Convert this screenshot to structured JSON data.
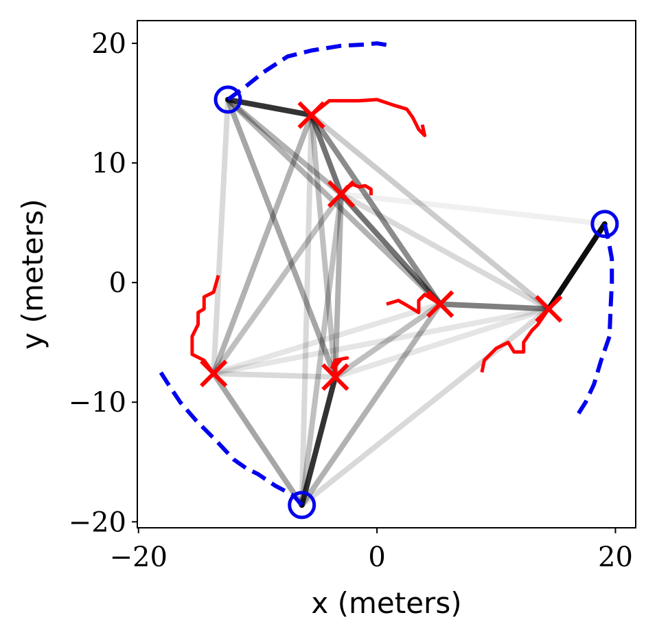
{
  "chart_data": {
    "type": "scatter",
    "title": "",
    "xlabel": "x (meters)",
    "ylabel": "y (meters)",
    "xlim": [
      -20.1,
      21.7
    ],
    "ylim": [
      -20.5,
      21.9
    ],
    "xticks": [
      -20,
      0,
      20
    ],
    "yticks": [
      -20,
      -10,
      0,
      10,
      20
    ],
    "xtick_labels": [
      "−20",
      "0",
      "20"
    ],
    "ytick_labels": [
      "−20",
      "−10",
      "0",
      "10",
      "20"
    ],
    "grid": false,
    "legend": "none",
    "colors": {
      "anchor": "#0000ee",
      "estimate": "#ff0000",
      "link": "#000000",
      "dashed": "#0000ee"
    },
    "anchors": [
      {
        "x": -12.5,
        "y": 15.3
      },
      {
        "x": 19.1,
        "y": 4.9
      },
      {
        "x": -6.3,
        "y": -18.6
      }
    ],
    "estimates": [
      {
        "x": -5.5,
        "y": 14.0
      },
      {
        "x": -3.0,
        "y": 7.4
      },
      {
        "x": 5.3,
        "y": -1.8
      },
      {
        "x": 14.4,
        "y": -2.2
      },
      {
        "x": -13.7,
        "y": -7.6
      },
      {
        "x": -3.5,
        "y": -7.9
      }
    ],
    "links": [
      {
        "from": [
          -12.5,
          15.3
        ],
        "to": [
          -5.5,
          14.0
        ],
        "opacity": 0.8
      },
      {
        "from": [
          -12.5,
          15.3
        ],
        "to": [
          -3.0,
          7.4
        ],
        "opacity": 0.3
      },
      {
        "from": [
          -12.5,
          15.3
        ],
        "to": [
          5.3,
          -1.8
        ],
        "opacity": 0.3
      },
      {
        "from": [
          -12.5,
          15.3
        ],
        "to": [
          -3.5,
          -7.9
        ],
        "opacity": 0.35
      },
      {
        "from": [
          -12.5,
          15.3
        ],
        "to": [
          -13.7,
          -7.6
        ],
        "opacity": 0.15
      },
      {
        "from": [
          -5.5,
          14.0
        ],
        "to": [
          -3.0,
          7.4
        ],
        "opacity": 0.55
      },
      {
        "from": [
          -5.5,
          14.0
        ],
        "to": [
          5.3,
          -1.8
        ],
        "opacity": 0.45
      },
      {
        "from": [
          -5.5,
          14.0
        ],
        "to": [
          14.4,
          -2.2
        ],
        "opacity": 0.2
      },
      {
        "from": [
          -5.5,
          14.0
        ],
        "to": [
          -13.7,
          -7.6
        ],
        "opacity": 0.3
      },
      {
        "from": [
          -5.5,
          14.0
        ],
        "to": [
          -3.5,
          -7.9
        ],
        "opacity": 0.25
      },
      {
        "from": [
          -5.5,
          14.0
        ],
        "to": [
          -6.3,
          -18.6
        ],
        "opacity": 0.15
      },
      {
        "from": [
          -3.0,
          7.4
        ],
        "to": [
          5.3,
          -1.8
        ],
        "opacity": 0.55
      },
      {
        "from": [
          -3.0,
          7.4
        ],
        "to": [
          14.4,
          -2.2
        ],
        "opacity": 0.15
      },
      {
        "from": [
          -3.0,
          7.4
        ],
        "to": [
          -13.7,
          -7.6
        ],
        "opacity": 0.25
      },
      {
        "from": [
          -3.0,
          7.4
        ],
        "to": [
          -3.5,
          -7.9
        ],
        "opacity": 0.3
      },
      {
        "from": [
          -3.0,
          7.4
        ],
        "to": [
          -6.3,
          -18.6
        ],
        "opacity": 0.25
      },
      {
        "from": [
          -3.0,
          7.4
        ],
        "to": [
          19.1,
          4.9
        ],
        "opacity": 0.06
      },
      {
        "from": [
          5.3,
          -1.8
        ],
        "to": [
          14.4,
          -2.2
        ],
        "opacity": 0.5
      },
      {
        "from": [
          5.3,
          -1.8
        ],
        "to": [
          -13.7,
          -7.6
        ],
        "opacity": 0.1
      },
      {
        "from": [
          5.3,
          -1.8
        ],
        "to": [
          -3.5,
          -7.9
        ],
        "opacity": 0.25
      },
      {
        "from": [
          5.3,
          -1.8
        ],
        "to": [
          -6.3,
          -18.6
        ],
        "opacity": 0.3
      },
      {
        "from": [
          14.4,
          -2.2
        ],
        "to": [
          19.1,
          4.9
        ],
        "opacity": 0.95
      },
      {
        "from": [
          14.4,
          -2.2
        ],
        "to": [
          -13.7,
          -7.6
        ],
        "opacity": 0.1
      },
      {
        "from": [
          14.4,
          -2.2
        ],
        "to": [
          -3.5,
          -7.9
        ],
        "opacity": 0.1
      },
      {
        "from": [
          14.4,
          -2.2
        ],
        "to": [
          -6.3,
          -18.6
        ],
        "opacity": 0.15
      },
      {
        "from": [
          -13.7,
          -7.6
        ],
        "to": [
          -3.5,
          -7.9
        ],
        "opacity": 0.15
      },
      {
        "from": [
          -13.7,
          -7.6
        ],
        "to": [
          -6.3,
          -18.6
        ],
        "opacity": 0.35
      },
      {
        "from": [
          -3.5,
          -7.9
        ],
        "to": [
          -6.3,
          -18.6
        ],
        "opacity": 0.8
      }
    ],
    "trajectories": [
      {
        "points": [
          [
            -5.5,
            14.0
          ],
          [
            -4.0,
            15.2
          ],
          [
            -1.5,
            15.2
          ],
          [
            0,
            15.3
          ],
          [
            1.5,
            14.8
          ],
          [
            2.5,
            14.5
          ],
          [
            3.0,
            13.8
          ],
          [
            3.5,
            12.8
          ],
          [
            4.0,
            12.3
          ],
          [
            3.8,
            13.2
          ]
        ]
      },
      {
        "points": [
          [
            -3.0,
            7.4
          ],
          [
            -2.5,
            8.0
          ],
          [
            -2.0,
            8.2
          ],
          [
            -1.5,
            8.0
          ],
          [
            -1.0,
            8.1
          ],
          [
            -0.5,
            7.8
          ],
          [
            -0.5,
            7.3
          ]
        ]
      },
      {
        "points": [
          [
            5.3,
            -1.8
          ],
          [
            4.0,
            -1.0
          ],
          [
            3.5,
            -1.5
          ],
          [
            3.5,
            -2.5
          ],
          [
            2.5,
            -1.9
          ],
          [
            1.8,
            -1.5
          ],
          [
            0.8,
            -1.8
          ]
        ]
      },
      {
        "points": [
          [
            14.4,
            -2.2
          ],
          [
            13.5,
            -3.5
          ],
          [
            13.0,
            -4.0
          ],
          [
            12.3,
            -5.0
          ],
          [
            12.3,
            -5.8
          ],
          [
            11.5,
            -5.8
          ],
          [
            11.0,
            -5.0
          ],
          [
            10.0,
            -5.5
          ],
          [
            9.0,
            -6.5
          ],
          [
            8.8,
            -7.5
          ]
        ]
      },
      {
        "points": [
          [
            -13.7,
            -7.6
          ],
          [
            -14.5,
            -6.5
          ],
          [
            -15.5,
            -6.0
          ],
          [
            -15.5,
            -4.5
          ],
          [
            -15.0,
            -3.5
          ],
          [
            -15.0,
            -2.5
          ],
          [
            -14.5,
            -2.2
          ],
          [
            -14.5,
            -1.2
          ],
          [
            -13.7,
            -0.8
          ],
          [
            -13.3,
            0.6
          ]
        ]
      },
      {
        "points": [
          [
            -3.5,
            -7.9
          ],
          [
            -3.5,
            -7.0
          ],
          [
            -3.0,
            -6.4
          ],
          [
            -2.5,
            -6.3
          ],
          [
            -3.5,
            -6.5
          ],
          [
            -3.8,
            -7.2
          ]
        ]
      }
    ],
    "dashed_paths": [
      {
        "points": [
          [
            -12.5,
            15.3
          ],
          [
            -11,
            16.4
          ],
          [
            -9.5,
            17.6
          ],
          [
            -7.5,
            18.9
          ],
          [
            -5.5,
            19.4
          ],
          [
            -3.0,
            19.8
          ],
          [
            -1.0,
            19.9
          ],
          [
            0,
            20.0
          ],
          [
            1.2,
            19.8
          ]
        ]
      },
      {
        "points": [
          [
            19.1,
            4.9
          ],
          [
            19.4,
            3.6
          ],
          [
            19.7,
            2.0
          ],
          [
            19.7,
            0
          ],
          [
            19.6,
            -2.0
          ],
          [
            19.5,
            -4.5
          ],
          [
            18.8,
            -6.5
          ],
          [
            18.2,
            -8.5
          ],
          [
            17.5,
            -10.0
          ],
          [
            16.8,
            -11.1
          ]
        ]
      },
      {
        "points": [
          [
            -6.3,
            -18.6
          ],
          [
            -7.0,
            -17.8
          ],
          [
            -8.5,
            -17.0
          ],
          [
            -10,
            -16.0
          ],
          [
            -11.0,
            -15.5
          ],
          [
            -12.0,
            -14.8
          ],
          [
            -13.5,
            -13.2
          ],
          [
            -15.2,
            -11.5
          ],
          [
            -16.5,
            -10.0
          ],
          [
            -17.5,
            -8.5
          ],
          [
            -18.2,
            -7.4
          ]
        ]
      }
    ]
  }
}
